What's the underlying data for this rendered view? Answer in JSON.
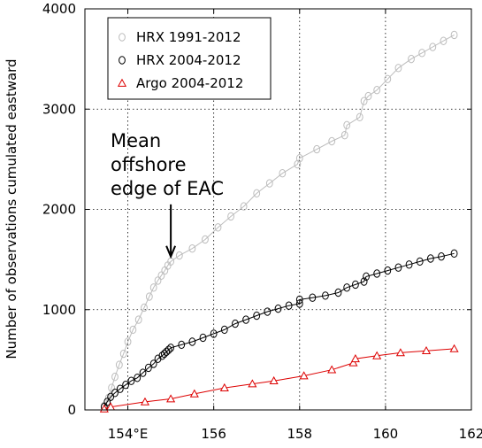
{
  "chart_data": {
    "type": "line",
    "xlabel": "",
    "ylabel": "Number of observations cumulated eastward",
    "xlim": [
      153.0,
      162.0
    ],
    "ylim": [
      0,
      4000
    ],
    "x_ticks": [
      154,
      156,
      158,
      160,
      162
    ],
    "x_tick_labels": [
      "154°E",
      "156",
      "158",
      "160",
      "162"
    ],
    "y_ticks": [
      0,
      1000,
      2000,
      3000,
      4000
    ],
    "y_tick_labels": [
      "0",
      "1000",
      "2000",
      "3000",
      "4000"
    ],
    "grid": true,
    "legend_position": "top-left",
    "annotation": {
      "lines": [
        "Mean",
        "offshore",
        "edge of EAC"
      ],
      "arrow_x": 155.0,
      "arrow_y_top": 2050,
      "arrow_y_bottom": 1530
    },
    "series": [
      {
        "name": "HRX 1991-2012",
        "color": "#bdbdbd",
        "marker": "circle",
        "x": [
          153.45,
          153.55,
          153.62,
          153.7,
          153.8,
          153.9,
          154.0,
          154.12,
          154.25,
          154.38,
          154.5,
          154.6,
          154.7,
          154.78,
          154.86,
          154.93,
          155.0,
          155.2,
          155.5,
          155.8,
          156.1,
          156.4,
          156.7,
          157.0,
          157.3,
          157.6,
          157.95,
          158.0,
          158.4,
          158.75,
          159.05,
          159.1,
          159.4,
          159.5,
          159.6,
          159.8,
          160.05,
          160.3,
          160.6,
          160.85,
          161.1,
          161.35,
          161.6
        ],
        "y": [
          40,
          120,
          220,
          330,
          450,
          560,
          680,
          800,
          900,
          1020,
          1130,
          1220,
          1290,
          1340,
          1390,
          1440,
          1480,
          1540,
          1610,
          1700,
          1820,
          1930,
          2030,
          2160,
          2260,
          2360,
          2450,
          2510,
          2600,
          2680,
          2740,
          2840,
          2920,
          3080,
          3130,
          3190,
          3300,
          3410,
          3500,
          3560,
          3620,
          3680,
          3740
        ]
      },
      {
        "name": "HRX 2004-2012",
        "color": "#000000",
        "marker": "circle",
        "x": [
          153.45,
          153.52,
          153.6,
          153.7,
          153.82,
          153.95,
          154.08,
          154.22,
          154.35,
          154.48,
          154.6,
          154.7,
          154.8,
          154.85,
          154.9,
          154.95,
          155.0,
          155.25,
          155.5,
          155.75,
          156.0,
          156.25,
          156.5,
          156.75,
          157.0,
          157.25,
          157.5,
          157.75,
          158.0,
          158.0,
          158.3,
          158.6,
          158.9,
          159.1,
          159.3,
          159.5,
          159.55,
          159.8,
          160.05,
          160.3,
          160.55,
          160.8,
          161.05,
          161.3,
          161.6
        ],
        "y": [
          30,
          80,
          130,
          170,
          210,
          250,
          290,
          320,
          370,
          420,
          460,
          510,
          540,
          560,
          580,
          600,
          620,
          650,
          680,
          720,
          760,
          800,
          860,
          900,
          940,
          980,
          1010,
          1040,
          1060,
          1100,
          1120,
          1140,
          1170,
          1220,
          1250,
          1280,
          1330,
          1360,
          1390,
          1420,
          1450,
          1480,
          1510,
          1530,
          1560
        ]
      },
      {
        "name": "Argo 2004-2012",
        "color": "#dd0000",
        "marker": "triangle",
        "x": [
          153.45,
          153.6,
          154.4,
          155.0,
          155.55,
          156.25,
          156.9,
          157.4,
          158.1,
          158.75,
          159.25,
          159.3,
          159.8,
          160.35,
          160.95,
          161.6
        ],
        "y": [
          10,
          30,
          80,
          110,
          160,
          220,
          260,
          290,
          340,
          400,
          470,
          510,
          540,
          570,
          590,
          610
        ]
      }
    ]
  }
}
